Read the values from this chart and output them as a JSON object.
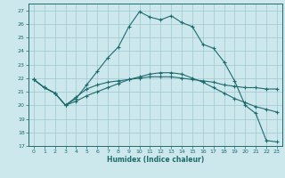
{
  "xlabel": "Humidex (Indice chaleur)",
  "bg_color": "#cce8ec",
  "grid_color": "#9ec8ce",
  "line_color": "#1e6b6e",
  "xlim": [
    -0.5,
    23.5
  ],
  "ylim": [
    17,
    27.5
  ],
  "yticks": [
    17,
    18,
    19,
    20,
    21,
    22,
    23,
    24,
    25,
    26,
    27
  ],
  "xticks": [
    0,
    1,
    2,
    3,
    4,
    5,
    6,
    7,
    8,
    9,
    10,
    11,
    12,
    13,
    14,
    15,
    16,
    17,
    18,
    19,
    20,
    21,
    22,
    23
  ],
  "series": [
    {
      "x": [
        0,
        1,
        2,
        3,
        4,
        5,
        6,
        7,
        8,
        9,
        10,
        11,
        12,
        13,
        14,
        15,
        16,
        17,
        18,
        19,
        20,
        21,
        22,
        23
      ],
      "y": [
        21.9,
        21.3,
        20.9,
        20.0,
        20.6,
        21.2,
        21.5,
        21.7,
        21.8,
        21.9,
        22.0,
        22.1,
        22.1,
        22.1,
        22.0,
        21.9,
        21.8,
        21.7,
        21.5,
        21.4,
        21.3,
        21.3,
        21.2,
        21.2
      ]
    },
    {
      "x": [
        0,
        1,
        2,
        3,
        4,
        5,
        6,
        7,
        8,
        9,
        10,
        11,
        12,
        13,
        14,
        15,
        16,
        17,
        18,
        19,
        20,
        21,
        22,
        23
      ],
      "y": [
        21.9,
        21.3,
        20.9,
        20.0,
        20.3,
        20.7,
        21.0,
        21.3,
        21.6,
        21.9,
        22.1,
        22.3,
        22.4,
        22.4,
        22.3,
        22.0,
        21.7,
        21.3,
        20.9,
        20.5,
        20.2,
        19.9,
        19.7,
        19.5
      ]
    },
    {
      "x": [
        0,
        1,
        2,
        3,
        4,
        5,
        6,
        7,
        8,
        9,
        10,
        11,
        12,
        13,
        14,
        15,
        16,
        17,
        18,
        19,
        20,
        21,
        22,
        23
      ],
      "y": [
        21.9,
        21.3,
        20.9,
        20.0,
        20.5,
        21.5,
        22.5,
        23.5,
        24.3,
        25.8,
        26.9,
        26.5,
        26.3,
        26.6,
        26.1,
        25.8,
        24.5,
        24.2,
        23.2,
        21.8,
        20.0,
        19.4,
        17.4,
        17.3
      ]
    }
  ]
}
